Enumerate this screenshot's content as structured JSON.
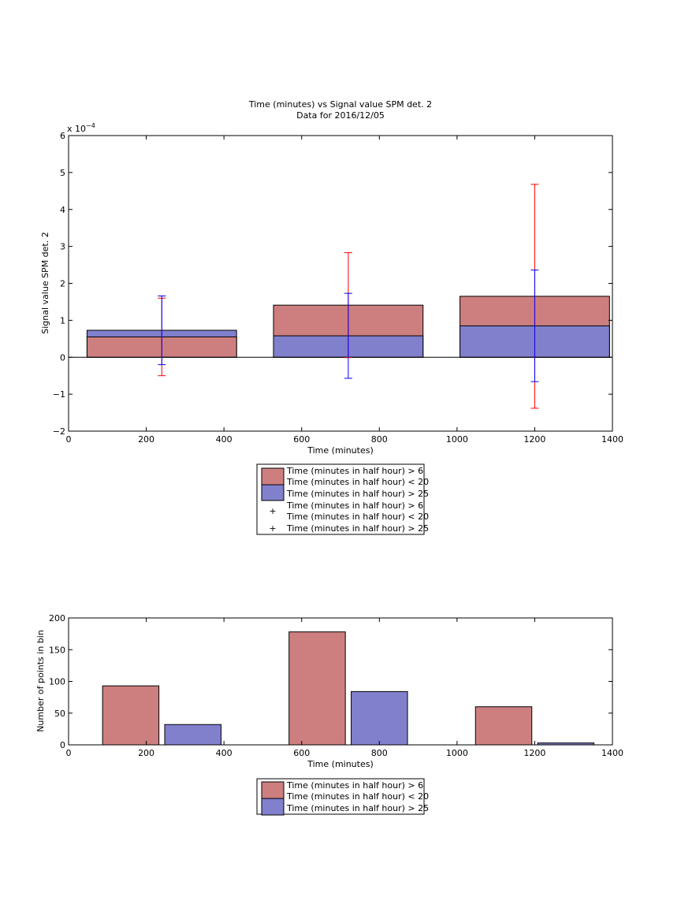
{
  "chart_data": [
    {
      "type": "bar",
      "title": "Time (minutes) vs Signal value SPM det. 2",
      "subtitle": "Data for 2016/12/05",
      "xlabel": "Time (minutes)",
      "ylabel": "Signal value SPM det. 2",
      "y_exponent_label": "x 10",
      "y_exponent_power": "−4",
      "xlim": [
        0,
        1400
      ],
      "ylim": [
        -2,
        6
      ],
      "x_ticks": [
        "0",
        "200",
        "400",
        "600",
        "800",
        "1000",
        "1200",
        "1400"
      ],
      "y_ticks": [
        "−2",
        "−1",
        "0",
        "1",
        "2",
        "3",
        "4",
        "5",
        "6"
      ],
      "grid": false,
      "legend_placement": "below",
      "stacked": false,
      "bar_centers": [
        240,
        720,
        1200
      ],
      "bar_width": 385,
      "series": [
        {
          "name_line1": "Time (minutes in half hour) > 6",
          "name_line2": "Time (minutes in half hour) < 20",
          "color": "#cd7f7f",
          "values": [
            0.55,
            1.41,
            1.65
          ],
          "errors": [
            1.05,
            1.42,
            3.03
          ],
          "error_color": "#ff0000"
        },
        {
          "name_line1": "Time (minutes in half hour) > 25",
          "color": "#8080cd",
          "values": [
            0.73,
            0.58,
            0.85
          ],
          "errors": [
            0.93,
            1.15,
            1.51
          ],
          "error_color": "#0000ff"
        }
      ],
      "legend_errorbar_entries": [
        {
          "marker": "+",
          "color": "#ff0000",
          "line1": "Time (minutes in half hour) > 6",
          "line2": "Time (minutes in half hour) < 20"
        },
        {
          "marker": "+",
          "color": "#0000ff",
          "line1": "Time (minutes in half hour) > 25"
        }
      ]
    },
    {
      "type": "bar",
      "xlabel": "Time (minutes)",
      "ylabel": "Number of points in bin",
      "xlim": [
        0,
        1400
      ],
      "ylim": [
        0,
        200
      ],
      "x_ticks": [
        "0",
        "200",
        "400",
        "600",
        "800",
        "1000",
        "1200",
        "1400"
      ],
      "y_ticks": [
        "0",
        "50",
        "100",
        "150",
        "200"
      ],
      "grid": false,
      "legend_placement": "below",
      "bar_width": 145,
      "series": [
        {
          "name_line1": "Time (minutes in half hour) > 6",
          "name_line2": "Time (minutes in half hour) < 20",
          "color": "#cd7f7f",
          "x": [
            160,
            640,
            1120
          ],
          "values": [
            93,
            178,
            60
          ]
        },
        {
          "name_line1": "Time (minutes in half hour) > 25",
          "color": "#8080cd",
          "x": [
            320,
            800,
            1280
          ],
          "values": [
            32,
            84,
            3
          ]
        }
      ]
    }
  ]
}
